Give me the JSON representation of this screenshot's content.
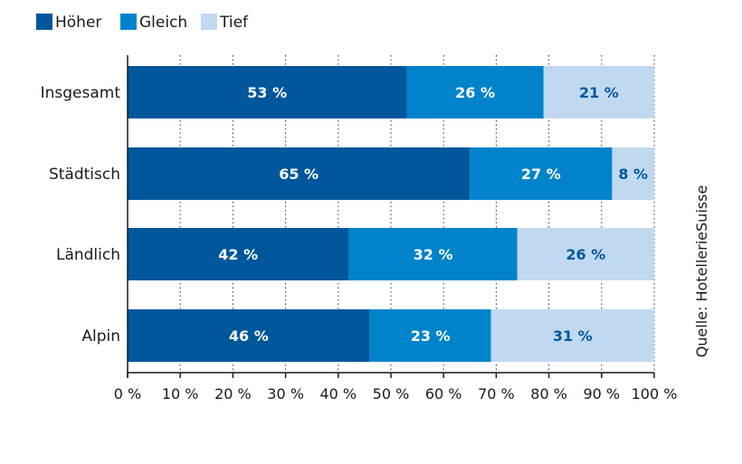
{
  "chart_data": {
    "type": "bar",
    "orientation": "horizontal",
    "stacked": true,
    "categories": [
      "Insgesamt",
      "Städtisch",
      "Ländlich",
      "Alpin"
    ],
    "series": [
      {
        "name": "Höher",
        "values": [
          53,
          65,
          42,
          46
        ],
        "labels": [
          "53 %",
          "65 %",
          "42 %",
          "46 %"
        ],
        "color": "#00579c",
        "label_color": "#ffffff"
      },
      {
        "name": "Gleich",
        "values": [
          26,
          27,
          32,
          23
        ],
        "labels": [
          "26 %",
          "27 %",
          "32 %",
          "23 %"
        ],
        "color": "#0083ca",
        "label_color": "#ffffff"
      },
      {
        "name": "Tief",
        "values": [
          21,
          8,
          26,
          31
        ],
        "labels": [
          "21 %",
          "8 %",
          "26 %",
          "31 %"
        ],
        "color": "#c0d9f0",
        "label_color": "#00579c"
      }
    ],
    "xlim": [
      0,
      100
    ],
    "xticks": [
      0,
      10,
      20,
      30,
      40,
      50,
      60,
      70,
      80,
      90,
      100
    ],
    "xtick_labels": [
      "0 %",
      "10 %",
      "20 %",
      "30 %",
      "40 %",
      "50 %",
      "60 %",
      "70 %",
      "80 %",
      "90 %",
      "100 %"
    ],
    "grid": "vertical dotted",
    "legend_position": "top-left",
    "source": "Quelle: HotellerieSuisse"
  }
}
